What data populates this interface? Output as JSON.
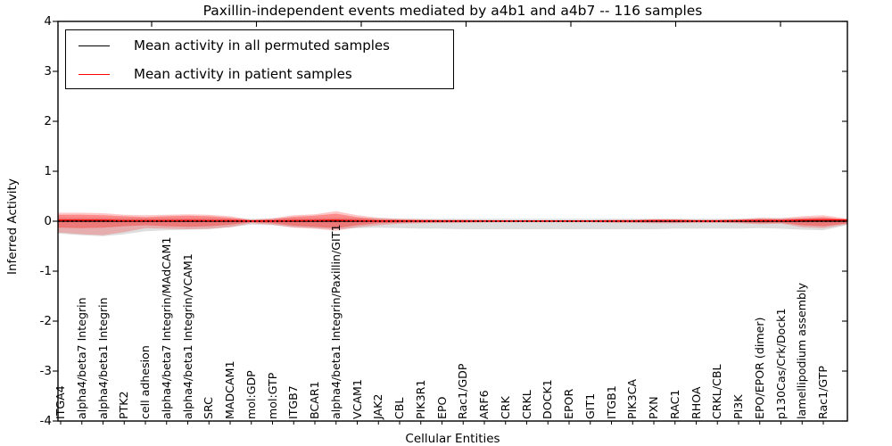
{
  "title": "Paxillin-independent events mediated by a4b1 and a4b7 -- 116 samples",
  "axes": {
    "xlabel": "Cellular Entities",
    "ylabel": "Inferred Activity",
    "ytick_labels": [
      "4",
      "3",
      "2",
      "1",
      "0",
      "-1",
      "-2",
      "-3",
      "-4"
    ]
  },
  "legend": {
    "items": [
      {
        "name": "permuted-mean-line",
        "label": "Mean activity in all permuted samples",
        "color": "#000000"
      },
      {
        "name": "patient-mean-line",
        "label": "Mean activity in patient samples",
        "color": "#ff0000"
      }
    ]
  },
  "chart_data": {
    "type": "area",
    "title": "Paxillin-independent events mediated by a4b1 and a4b7 -- 116 samples",
    "xlabel": "Cellular Entities",
    "ylabel": "Inferred Activity",
    "ylim": [
      -4,
      4
    ],
    "yticks": [
      4,
      3,
      2,
      1,
      0,
      -1,
      -2,
      -3,
      -4
    ],
    "grid": false,
    "legend_position": "upper left",
    "categories": [
      "ITGA4",
      "alpha4/beta7 Integrin",
      "alpha4/beta1 Integrin",
      "PTK2",
      "cell adhesion",
      "alpha4/beta7 Integrin/MAdCAM1",
      "alpha4/beta1 Integrin/VCAM1",
      "SRC",
      "MADCAM1",
      "mol:GDP",
      "mol:GTP",
      "ITGB7",
      "BCAR1",
      "alpha4/beta1 Integrin/Paxillin/GIT1",
      "VCAM1",
      "JAK2",
      "CBL",
      "PIK3R1",
      "EPO",
      "Rac1/GDP",
      "ARF6",
      "CRK",
      "CRKL",
      "DOCK1",
      "EPOR",
      "GIT1",
      "ITGB1",
      "PIK3CA",
      "PXN",
      "RAC1",
      "RHOA",
      "CRKL/CBL",
      "PI3K",
      "EPO/EPOR (dimer)",
      "p130Cas/Crk/Dock1",
      "lamellipodium assembly",
      "Rac1/GTP"
    ],
    "series": [
      {
        "name": "Mean activity in all permuted samples",
        "color": "#000000",
        "line_style": "solid with dotted overlay",
        "values": [
          0,
          0,
          0,
          0,
          0,
          0,
          0,
          0,
          0,
          0,
          0,
          0,
          0,
          0,
          0,
          0,
          0,
          0,
          0,
          0,
          0,
          0,
          0,
          0,
          0,
          0,
          0,
          0,
          0,
          0,
          0,
          0,
          0,
          0,
          0,
          0,
          0
        ]
      },
      {
        "name": "Mean activity in patient samples",
        "color": "#ff0000",
        "line_style": "solid",
        "values": [
          0.02,
          0.02,
          0.02,
          0.01,
          0.01,
          0.01,
          0.015,
          0.01,
          0.01,
          0.005,
          0.005,
          0.01,
          0.015,
          0.02,
          0.01,
          0.005,
          0.005,
          0.005,
          0.005,
          0.005,
          0.005,
          0.005,
          0.005,
          0.005,
          0.005,
          0.005,
          0.005,
          0.005,
          0.01,
          0.01,
          0.005,
          0.005,
          0.01,
          0.015,
          0.01,
          0.02,
          0.025
        ]
      }
    ],
    "bands": [
      {
        "name": "permuted-samples-range",
        "color": "#000000",
        "opacity": 0.13,
        "upper": [
          0.07,
          0.07,
          0.07,
          0.06,
          0.06,
          0.06,
          0.06,
          0.06,
          0.05,
          0.05,
          0.05,
          0.06,
          0.06,
          0.07,
          0.06,
          0.06,
          0.05,
          0.05,
          0.05,
          0.05,
          0.05,
          0.05,
          0.05,
          0.05,
          0.05,
          0.05,
          0.05,
          0.05,
          0.05,
          0.05,
          0.05,
          0.05,
          0.05,
          0.06,
          0.06,
          0.06,
          0.07
        ],
        "lower": [
          -0.25,
          -0.28,
          -0.3,
          -0.26,
          -0.2,
          -0.18,
          -0.17,
          -0.16,
          -0.12,
          -0.07,
          -0.08,
          -0.12,
          -0.14,
          -0.16,
          -0.14,
          -0.13,
          -0.14,
          -0.15,
          -0.15,
          -0.16,
          -0.16,
          -0.16,
          -0.16,
          -0.16,
          -0.16,
          -0.16,
          -0.16,
          -0.16,
          -0.16,
          -0.15,
          -0.15,
          -0.15,
          -0.15,
          -0.14,
          -0.15,
          -0.17,
          -0.18
        ]
      },
      {
        "name": "patient-samples-range-outer",
        "color": "#ff0000",
        "opacity": 0.22,
        "upper": [
          0.17,
          0.17,
          0.16,
          0.13,
          0.12,
          0.13,
          0.14,
          0.13,
          0.1,
          0.03,
          0.06,
          0.12,
          0.14,
          0.2,
          0.12,
          0.07,
          0.05,
          0.04,
          0.03,
          0.03,
          0.025,
          0.02,
          0.02,
          0.02,
          0.02,
          0.02,
          0.03,
          0.03,
          0.04,
          0.04,
          0.03,
          0.03,
          0.04,
          0.07,
          0.06,
          0.1,
          0.12
        ],
        "lower": [
          -0.23,
          -0.26,
          -0.28,
          -0.22,
          -0.14,
          -0.15,
          -0.16,
          -0.15,
          -0.12,
          -0.04,
          -0.07,
          -0.13,
          -0.15,
          -0.19,
          -0.12,
          -0.08,
          -0.05,
          -0.04,
          -0.035,
          -0.03,
          -0.025,
          -0.02,
          -0.02,
          -0.02,
          -0.02,
          -0.02,
          -0.03,
          -0.03,
          -0.04,
          -0.04,
          -0.03,
          -0.03,
          -0.04,
          -0.06,
          -0.05,
          -0.12,
          -0.14
        ]
      },
      {
        "name": "patient-samples-range-inner",
        "color": "#ff0000",
        "opacity": 0.3,
        "upper": [
          0.13,
          0.13,
          0.12,
          0.1,
          0.08,
          0.1,
          0.11,
          0.1,
          0.07,
          0.02,
          0.04,
          0.09,
          0.11,
          0.15,
          0.08,
          0.04,
          0.03,
          0.025,
          0.02,
          0.02,
          0.015,
          0.012,
          0.012,
          0.012,
          0.012,
          0.012,
          0.018,
          0.02,
          0.025,
          0.025,
          0.02,
          0.02,
          0.025,
          0.04,
          0.035,
          0.06,
          0.08
        ],
        "lower": [
          -0.13,
          -0.14,
          -0.13,
          -0.1,
          -0.08,
          -0.1,
          -0.11,
          -0.1,
          -0.07,
          -0.02,
          -0.04,
          -0.09,
          -0.11,
          -0.14,
          -0.08,
          -0.04,
          -0.03,
          -0.025,
          -0.02,
          -0.02,
          -0.015,
          -0.012,
          -0.012,
          -0.012,
          -0.012,
          -0.012,
          -0.018,
          -0.02,
          -0.025,
          -0.025,
          -0.02,
          -0.02,
          -0.025,
          -0.035,
          -0.03,
          -0.08,
          -0.1
        ]
      }
    ]
  }
}
